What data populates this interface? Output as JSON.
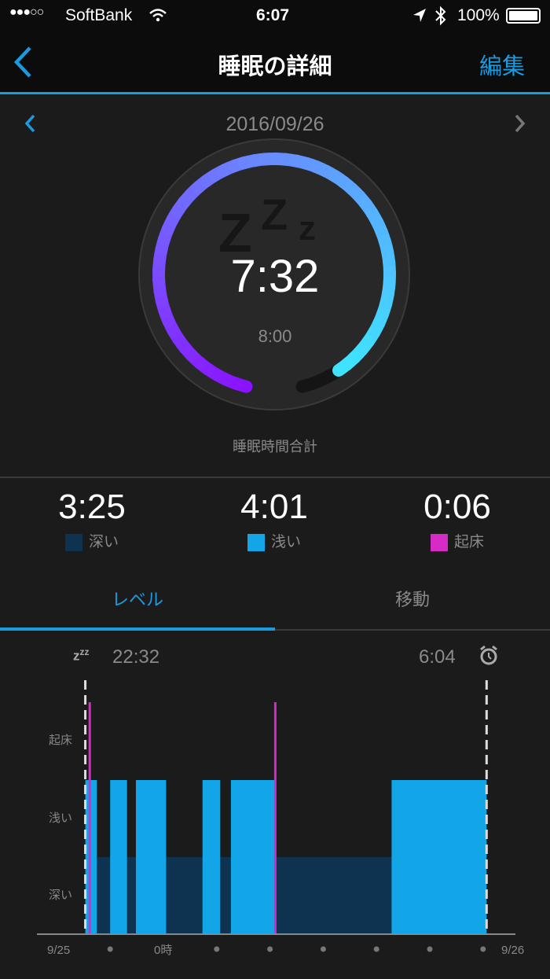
{
  "status_bar": {
    "signal": "●●●○○",
    "carrier": "SoftBank",
    "time": "6:07",
    "battery": "100%"
  },
  "nav": {
    "title": "睡眠の詳細",
    "edit_label": "編集"
  },
  "date_nav": {
    "date": "2016/09/26"
  },
  "ring": {
    "total": "7:32",
    "goal": "8:00",
    "progress": 0.94,
    "caption": "睡眠時間合計",
    "colors": {
      "start": "#8a12ff",
      "mid": "#6a86ff",
      "end": "#3fe3ff"
    }
  },
  "stats": [
    {
      "value": "3:25",
      "label": "深い",
      "color": "#0e3350"
    },
    {
      "value": "4:01",
      "label": "浅い",
      "color": "#12a6e8"
    },
    {
      "value": "0:06",
      "label": "起床",
      "color": "#d62bc4"
    }
  ],
  "tabs": [
    {
      "label": "レベル",
      "active": true
    },
    {
      "label": "移動",
      "active": false
    }
  ],
  "chart_header": {
    "sleep_start": "22:32",
    "wake_time": "6:04"
  },
  "chart_data": {
    "type": "area",
    "y_levels": [
      "深い",
      "浅い",
      "起床"
    ],
    "x_tick_labels": [
      "9/25",
      "0時",
      "9/26"
    ],
    "x_range": [
      "21:38",
      "6:36"
    ],
    "sleep_window": [
      "22:32",
      "6:04"
    ],
    "light_segments": [
      [
        "22:32",
        "22:45"
      ],
      [
        "23:00",
        "23:19"
      ],
      [
        "23:29",
        "0:03"
      ],
      [
        "0:44",
        "1:04"
      ],
      [
        "1:16",
        "2:06"
      ],
      [
        "4:17",
        "6:04"
      ]
    ],
    "deep_segments": [
      [
        "22:45",
        "23:00"
      ],
      [
        "23:19",
        "23:29"
      ],
      [
        "0:03",
        "0:44"
      ],
      [
        "1:04",
        "1:16"
      ],
      [
        "2:06",
        "4:17"
      ]
    ],
    "wake_marks": [
      "22:37",
      "2:06"
    ],
    "hour_dots": [
      "23:00",
      "1:00",
      "2:00",
      "3:00",
      "4:00",
      "5:00",
      "6:00"
    ],
    "colors": {
      "deep": "#0e3350",
      "light": "#12a6e8",
      "wake": "#d62bc4"
    }
  }
}
